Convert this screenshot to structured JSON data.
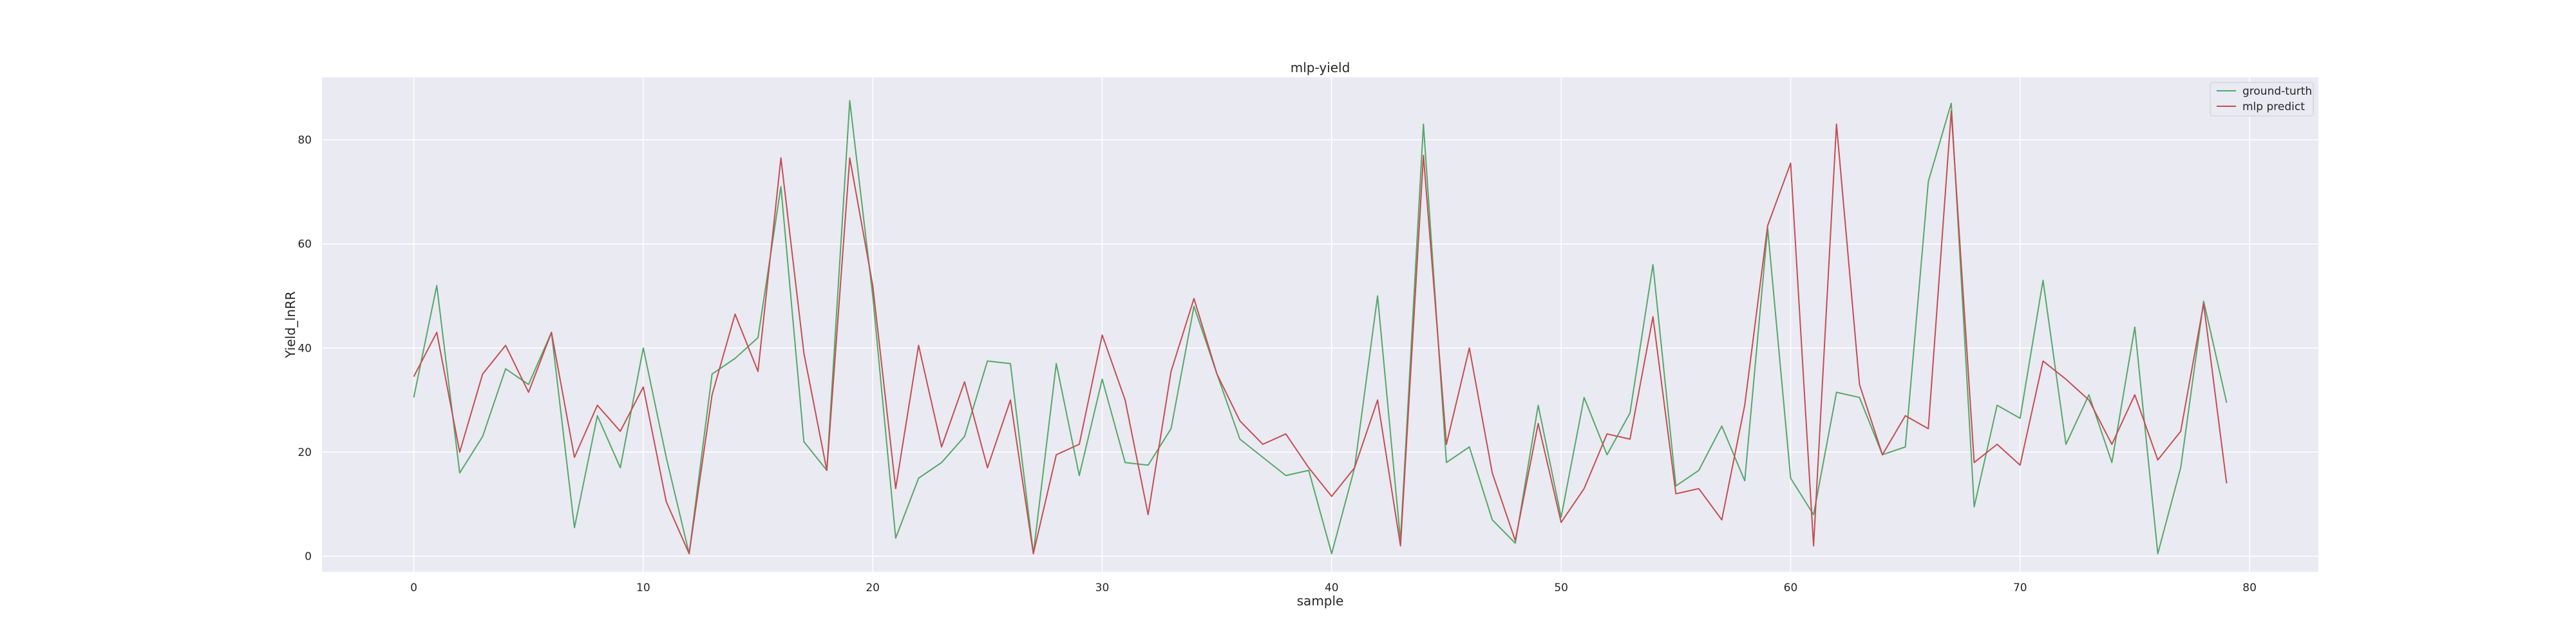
{
  "chart_data": {
    "type": "line",
    "title": "mlp-yield",
    "xlabel": "sample",
    "ylabel": "Yield_lnRR",
    "xlim": [
      -4,
      83
    ],
    "ylim": [
      -3,
      92
    ],
    "xticks": [
      0,
      10,
      20,
      30,
      40,
      50,
      60,
      70,
      80
    ],
    "yticks": [
      0,
      20,
      40,
      60,
      80
    ],
    "grid": true,
    "legend_position": "top-right",
    "x": [
      0,
      1,
      2,
      3,
      4,
      5,
      6,
      7,
      8,
      9,
      10,
      11,
      12,
      13,
      14,
      15,
      16,
      17,
      18,
      19,
      20,
      21,
      22,
      23,
      24,
      25,
      26,
      27,
      28,
      29,
      30,
      31,
      32,
      33,
      34,
      35,
      36,
      37,
      38,
      39,
      40,
      41,
      42,
      43,
      44,
      45,
      46,
      47,
      48,
      49,
      50,
      51,
      52,
      53,
      54,
      55,
      56,
      57,
      58,
      59,
      60,
      61,
      62,
      63,
      64,
      65,
      66,
      67,
      68,
      69,
      70,
      71,
      72,
      73,
      74,
      75,
      76,
      77,
      78,
      79
    ],
    "series": [
      {
        "name": "ground-turth",
        "color": "#55a868",
        "values": [
          30.5,
          52,
          16,
          23,
          36,
          33,
          43,
          5.5,
          27,
          17,
          40,
          19,
          0.5,
          35,
          38,
          42,
          71,
          22,
          16.5,
          87.5,
          50,
          3.5,
          15,
          18,
          23,
          37.5,
          37,
          0.5,
          37,
          15.5,
          34,
          18,
          17.5,
          24.5,
          48,
          35,
          22.5,
          19,
          15.5,
          16.5,
          0.5,
          17,
          50,
          3,
          83,
          18,
          21,
          7,
          2.5,
          29,
          7.5,
          30.5,
          19.5,
          27.5,
          56,
          13.5,
          16.5,
          25,
          14.5,
          63,
          15,
          8,
          31.5,
          30.5,
          19.5,
          21,
          72,
          87,
          9.5,
          29,
          26.5,
          53,
          21.5,
          31,
          18,
          44,
          0.5,
          17,
          49,
          29.5
        ]
      },
      {
        "name": "mlp predict",
        "color": "#c44e52",
        "values": [
          34.5,
          43,
          20,
          35,
          40.5,
          31.5,
          43,
          19,
          29,
          24,
          32.5,
          10.5,
          0.5,
          31,
          46.5,
          35.5,
          76.5,
          39,
          16.5,
          76.5,
          52,
          13,
          40.5,
          21,
          33.5,
          17,
          30,
          0.5,
          19.5,
          21.5,
          42.5,
          30,
          8,
          35.5,
          49.5,
          35,
          26,
          21.5,
          23.5,
          17,
          11.5,
          17,
          30,
          2,
          77,
          21.5,
          40,
          16,
          3,
          25.5,
          6.5,
          13,
          23.5,
          22.5,
          46,
          12,
          13,
          7,
          29,
          63.5,
          75.5,
          2,
          83,
          33,
          19.5,
          27,
          24.5,
          85.5,
          18,
          21.5,
          17.5,
          37.5,
          34,
          30,
          21.5,
          31,
          18.5,
          24,
          48.5,
          14
        ]
      }
    ]
  }
}
